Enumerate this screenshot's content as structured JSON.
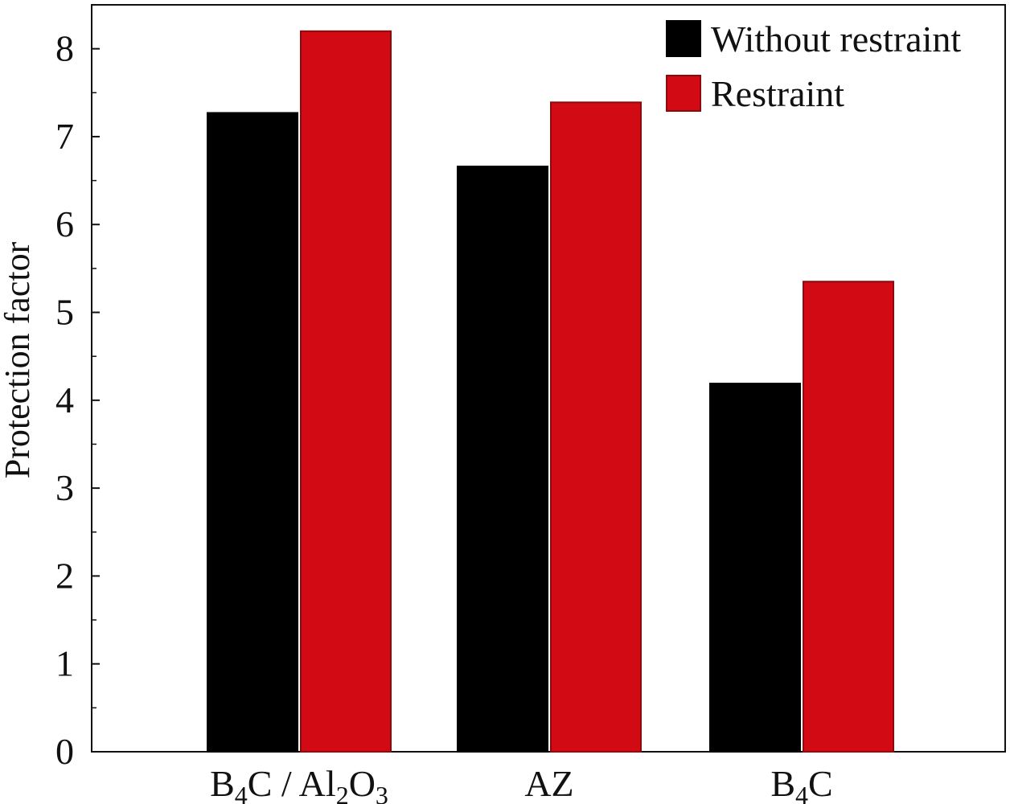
{
  "chart_data": {
    "type": "bar",
    "title": "",
    "xlabel": "",
    "ylabel": "Protection factor",
    "ylim": [
      0,
      8.5
    ],
    "yticks": [
      0,
      1,
      2,
      3,
      4,
      5,
      6,
      7,
      8
    ],
    "categories": [
      {
        "parts": [
          {
            "t": "B"
          },
          {
            "t": "4",
            "sub": true
          },
          {
            "t": "C / Al"
          },
          {
            "t": "2",
            "sub": true
          },
          {
            "t": "O"
          },
          {
            "t": "3",
            "sub": true
          }
        ]
      },
      {
        "parts": [
          {
            "t": "AZ"
          }
        ]
      },
      {
        "parts": [
          {
            "t": "B"
          },
          {
            "t": "4",
            "sub": true
          },
          {
            "t": "C"
          }
        ]
      }
    ],
    "series": [
      {
        "name": "Without restraint",
        "color": "#000000",
        "values": [
          7.27,
          6.66,
          4.19
        ]
      },
      {
        "name": "Restraint",
        "color": "#d10a14",
        "values": [
          8.2,
          7.39,
          5.35
        ]
      }
    ],
    "legend_position": "top-right",
    "grid": false
  }
}
